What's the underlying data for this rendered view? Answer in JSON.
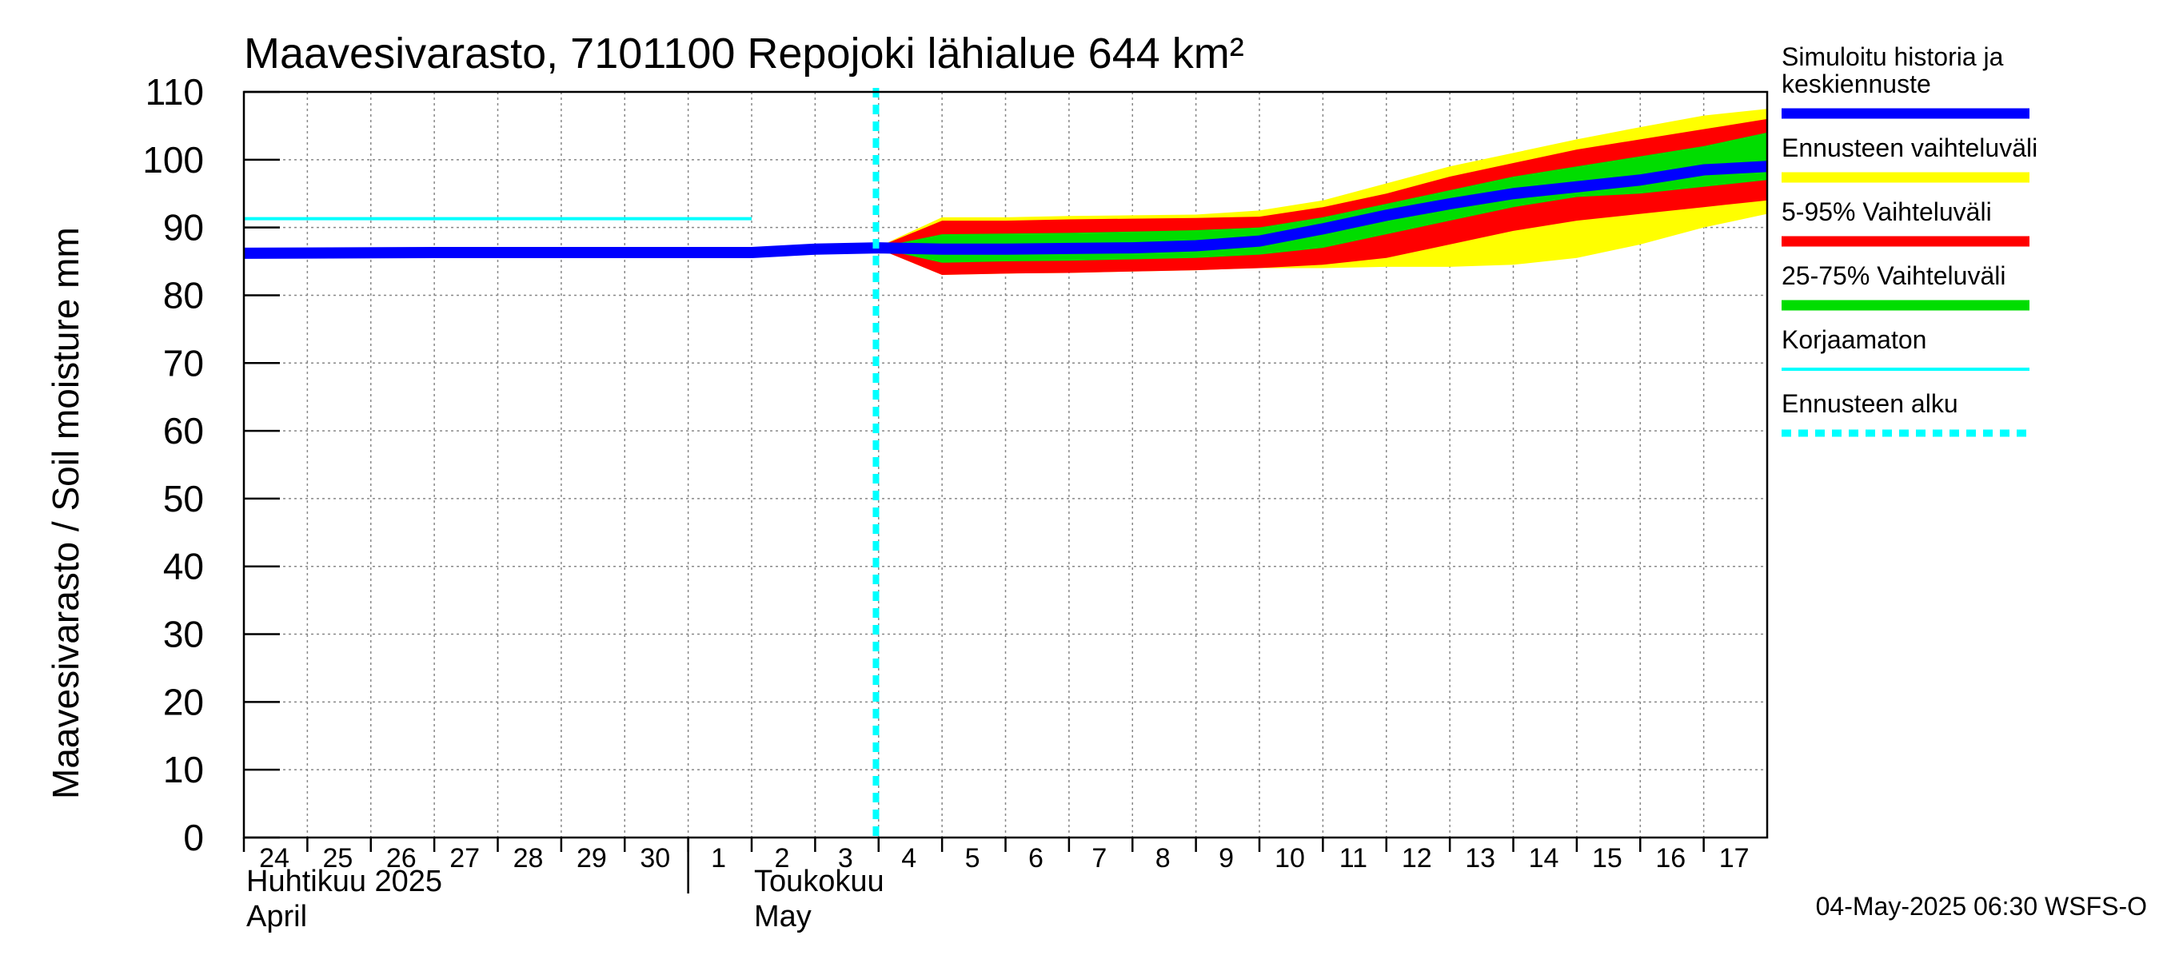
{
  "chart_data": {
    "type": "line",
    "title": "Maavesivarasto, 7101100 Repojoki lähialue 644 km²",
    "ylabel": "Maavesivarasto / Soil moisture   mm",
    "ylim": [
      0,
      110
    ],
    "yticks": [
      0,
      10,
      20,
      30,
      40,
      50,
      60,
      70,
      80,
      90,
      100,
      110
    ],
    "grid": true,
    "legend_position": "right",
    "x_range": [
      "2025-04-24",
      "2025-05-18"
    ],
    "day_ticks": [
      {
        "date": "2025-04-24",
        "label": "24"
      },
      {
        "date": "2025-04-25",
        "label": "25"
      },
      {
        "date": "2025-04-26",
        "label": "26"
      },
      {
        "date": "2025-04-27",
        "label": "27"
      },
      {
        "date": "2025-04-28",
        "label": "28"
      },
      {
        "date": "2025-04-29",
        "label": "29"
      },
      {
        "date": "2025-04-30",
        "label": "30"
      },
      {
        "date": "2025-05-01",
        "label": "1"
      },
      {
        "date": "2025-05-02",
        "label": "2"
      },
      {
        "date": "2025-05-03",
        "label": "3"
      },
      {
        "date": "2025-05-04",
        "label": "4"
      },
      {
        "date": "2025-05-05",
        "label": "5"
      },
      {
        "date": "2025-05-06",
        "label": "6"
      },
      {
        "date": "2025-05-07",
        "label": "7"
      },
      {
        "date": "2025-05-08",
        "label": "8"
      },
      {
        "date": "2025-05-09",
        "label": "9"
      },
      {
        "date": "2025-05-10",
        "label": "10"
      },
      {
        "date": "2025-05-11",
        "label": "11"
      },
      {
        "date": "2025-05-12",
        "label": "12"
      },
      {
        "date": "2025-05-13",
        "label": "13"
      },
      {
        "date": "2025-05-14",
        "label": "14"
      },
      {
        "date": "2025-05-15",
        "label": "15"
      },
      {
        "date": "2025-05-16",
        "label": "16"
      },
      {
        "date": "2025-05-17",
        "label": "17"
      }
    ],
    "month_labels": [
      {
        "date": "2025-04-24",
        "lines": [
          "Huhtikuu  2025",
          "April"
        ]
      },
      {
        "date": "2025-05-02",
        "lines": [
          "Toukokuu",
          "May"
        ]
      }
    ],
    "month_divider_date": "2025-05-01",
    "forecast_start": "2025-05-03T23:00",
    "series": [
      {
        "name": "Simuloitu historia ja keskiennuste",
        "color": "#0000ff",
        "x": [
          "2025-04-24",
          "2025-04-27",
          "2025-04-30",
          "2025-05-02",
          "2025-05-03",
          "2025-05-04",
          "2025-05-05",
          "2025-05-06",
          "2025-05-07",
          "2025-05-08",
          "2025-05-09",
          "2025-05-10",
          "2025-05-11",
          "2025-05-12",
          "2025-05-13",
          "2025-05-14",
          "2025-05-15",
          "2025-05-16",
          "2025-05-17",
          "2025-05-18"
        ],
        "values": [
          86.2,
          86.3,
          86.3,
          86.3,
          86.8,
          87.0,
          86.8,
          86.8,
          86.9,
          87.0,
          87.3,
          88.0,
          89.8,
          91.8,
          93.5,
          95.0,
          96.0,
          97.0,
          98.5,
          99.0
        ]
      },
      {
        "name": "Korjaamaton",
        "color": "#00ffff",
        "x": [
          "2025-04-24",
          "2025-05-02"
        ],
        "values": [
          91.3,
          91.3
        ]
      }
    ],
    "bands": [
      {
        "name": "Ennusteen vaihteluväli",
        "color": "#ffff00",
        "x": [
          "2025-05-03T23:00",
          "2025-05-05",
          "2025-05-06",
          "2025-05-07",
          "2025-05-08",
          "2025-05-09",
          "2025-05-10",
          "2025-05-11",
          "2025-05-12",
          "2025-05-13",
          "2025-05-14",
          "2025-05-15",
          "2025-05-16",
          "2025-05-17",
          "2025-05-18"
        ],
        "lower": [
          87.0,
          83.0,
          83.2,
          83.3,
          83.5,
          83.7,
          84.0,
          84.0,
          84.2,
          84.2,
          84.5,
          85.5,
          87.5,
          90.0,
          92.0
        ],
        "upper": [
          87.0,
          91.5,
          91.5,
          91.7,
          91.8,
          91.9,
          92.5,
          94.0,
          96.5,
          99.0,
          101.0,
          103.0,
          104.8,
          106.5,
          107.5
        ]
      },
      {
        "name": "5-95% Vaihteluväli",
        "color": "#ff0000",
        "x": [
          "2025-05-03T23:00",
          "2025-05-05",
          "2025-05-06",
          "2025-05-07",
          "2025-05-08",
          "2025-05-09",
          "2025-05-10",
          "2025-05-11",
          "2025-05-12",
          "2025-05-13",
          "2025-05-14",
          "2025-05-15",
          "2025-05-16",
          "2025-05-17",
          "2025-05-18"
        ],
        "lower": [
          87.0,
          83.0,
          83.2,
          83.3,
          83.5,
          83.7,
          84.0,
          84.5,
          85.5,
          87.5,
          89.5,
          91.0,
          92.0,
          93.0,
          94.0
        ],
        "upper": [
          87.0,
          91.0,
          91.0,
          91.2,
          91.3,
          91.4,
          91.6,
          93.0,
          95.0,
          97.5,
          99.5,
          101.5,
          103.0,
          104.5,
          106.0
        ]
      },
      {
        "name": "25-75% Vaihteluväli",
        "color": "#00dd00",
        "x": [
          "2025-05-03T23:00",
          "2025-05-05",
          "2025-05-06",
          "2025-05-07",
          "2025-05-08",
          "2025-05-09",
          "2025-05-10",
          "2025-05-11",
          "2025-05-12",
          "2025-05-13",
          "2025-05-14",
          "2025-05-15",
          "2025-05-16",
          "2025-05-17",
          "2025-05-18"
        ],
        "lower": [
          87.0,
          84.8,
          85.0,
          85.1,
          85.3,
          85.5,
          86.0,
          87.0,
          89.0,
          91.0,
          93.0,
          94.5,
          95.0,
          96.0,
          97.0
        ],
        "upper": [
          87.0,
          89.0,
          89.1,
          89.2,
          89.4,
          89.6,
          90.0,
          91.5,
          93.5,
          95.5,
          97.5,
          99.0,
          100.5,
          102.0,
          104.0
        ]
      }
    ],
    "legend": [
      {
        "label": "Simuloitu historia ja keskiennuste",
        "lines": [
          "Simuloitu historia ja",
          "keskiennuste"
        ],
        "color": "#0000ff",
        "style": "solid"
      },
      {
        "label": "Ennusteen vaihteluväli",
        "lines": [
          "Ennusteen vaihteluväli"
        ],
        "color": "#ffff00",
        "style": "solid"
      },
      {
        "label": "5-95% Vaihteluväli",
        "lines": [
          "5-95% Vaihteluväli"
        ],
        "color": "#ff0000",
        "style": "solid"
      },
      {
        "label": "25-75% Vaihteluväli",
        "lines": [
          "25-75% Vaihteluväli"
        ],
        "color": "#00dd00",
        "style": "solid"
      },
      {
        "label": "Korjaamaton",
        "lines": [
          "Korjaamaton"
        ],
        "color": "#00ffff",
        "style": "thin"
      },
      {
        "label": "Ennusteen alku",
        "lines": [
          "Ennusteen alku"
        ],
        "color": "#00ffff",
        "style": "dashed"
      }
    ],
    "footer": "04-May-2025 06:30 WSFS-O"
  }
}
